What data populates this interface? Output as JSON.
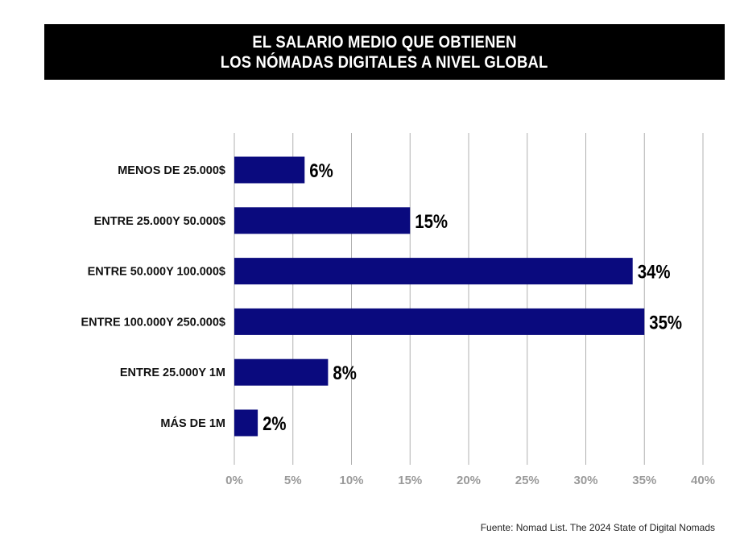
{
  "title": {
    "line1": "EL SALARIO MEDIO QUE OBTIENEN",
    "line2": "LOS NÓMADAS DIGITALES A NIVEL GLOBAL"
  },
  "source": "Fuente: Nomad List. The 2024 State of Digital Nomads",
  "colors": {
    "bar": "#0a0a7e",
    "grid": "#b0b0b0",
    "tick_text": "#9a9a9a",
    "title_bg": "#000000",
    "title_text": "#ffffff"
  },
  "chart_data": {
    "type": "bar",
    "orientation": "horizontal",
    "categories": [
      "MENOS DE 25.000$",
      "ENTRE 25.000Y 50.000$",
      "ENTRE 50.000Y 100.000$",
      "ENTRE 100.000Y 250.000$",
      "ENTRE 25.000Y 1M",
      "MÁS DE 1M"
    ],
    "values": [
      6,
      15,
      34,
      35,
      8,
      2
    ],
    "value_labels": [
      "6%",
      "15%",
      "34%",
      "35%",
      "8%",
      "2%"
    ],
    "xlim": [
      0,
      40
    ],
    "xticks": [
      0,
      5,
      10,
      15,
      20,
      25,
      30,
      35,
      40
    ],
    "xtick_labels": [
      "0%",
      "5%",
      "10%",
      "15%",
      "20%",
      "25%",
      "30%",
      "35%",
      "40%"
    ],
    "grid": true,
    "legend": "none"
  }
}
